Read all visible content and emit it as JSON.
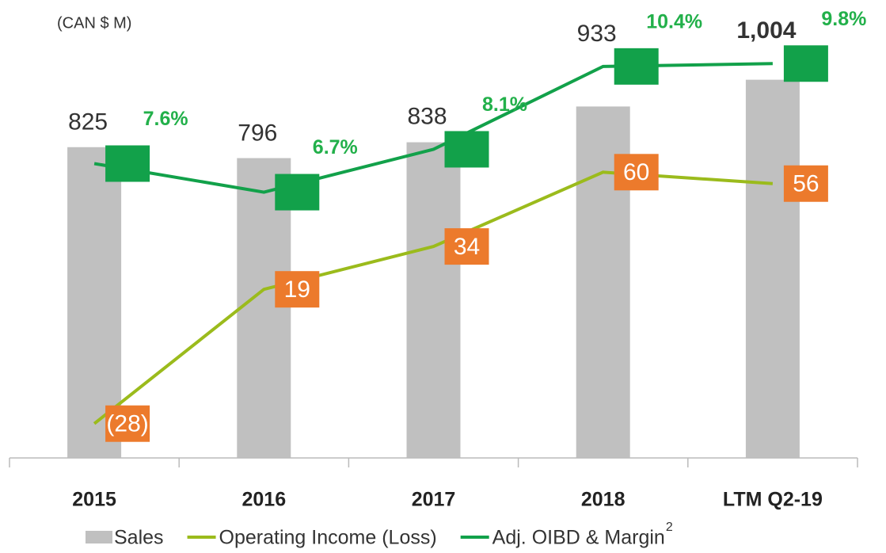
{
  "chart_data": {
    "type": "bar_line",
    "subtitle": "(CAN $ M)",
    "categories": [
      "2015",
      "2016",
      "2017",
      "2018",
      "LTM Q2-19"
    ],
    "ylim": [
      0,
      1100
    ],
    "y2lim": [
      -40,
      105
    ],
    "series": [
      {
        "name": "Sales",
        "type": "bar",
        "color": "#c0c0c0",
        "values": [
          825,
          796,
          838,
          933,
          1004
        ],
        "value_labels": [
          "825",
          "796",
          "838",
          "933",
          "1,004"
        ]
      },
      {
        "name": "Operating Income (Loss)",
        "type": "line",
        "axis": "y2",
        "color": "#9bbb1c",
        "marker_color": "#ec7a2c",
        "values": [
          -28,
          19,
          34,
          60,
          56
        ],
        "value_labels": [
          "(28)",
          "19",
          "34",
          "60",
          "56"
        ]
      },
      {
        "name": "Adj. OIBD & Margin",
        "name_superscript": "2",
        "type": "line",
        "axis": "y2",
        "color": "#12a14a",
        "marker_color": "#12a14a",
        "values": [
          63,
          53,
          68,
          97,
          98
        ],
        "margins": [
          7.6,
          6.7,
          8.1,
          10.4,
          9.8
        ],
        "margin_labels": [
          "7.6%",
          "6.7%",
          "8.1%",
          "10.4%",
          "9.8%"
        ],
        "margin_color": "#22b04a"
      }
    ]
  }
}
